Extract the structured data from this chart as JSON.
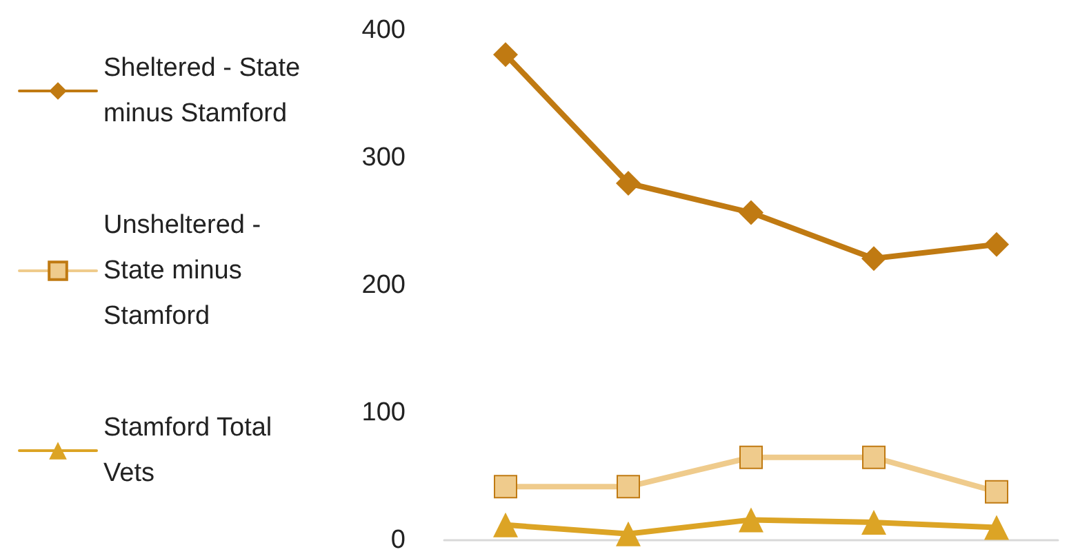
{
  "chart_data": {
    "type": "line",
    "categories": [
      null,
      null,
      null,
      null,
      null
    ],
    "series": [
      {
        "name": "Sheltered - State minus Stamford",
        "color": "#c07a12",
        "marker": "diamond",
        "values": [
          381,
          280,
          257,
          221,
          232
        ]
      },
      {
        "name": "Unsheltered - State minus Stamford",
        "color": "#efcb8c",
        "marker": "square",
        "values": [
          42,
          42,
          65,
          65,
          38
        ]
      },
      {
        "name": "Stamford Total Vets",
        "color": "#dca425",
        "marker": "triangle",
        "values": [
          12,
          5,
          16,
          14,
          10
        ]
      }
    ],
    "ylim": [
      0,
      400
    ],
    "yticks": [
      0,
      100,
      200,
      300,
      400
    ],
    "grid": false,
    "legend": "left",
    "line_style": "solid"
  }
}
